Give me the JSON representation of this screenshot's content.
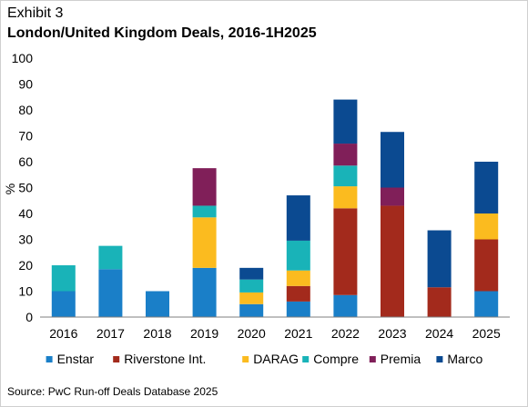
{
  "header": {
    "exhibit": "Exhibit 3",
    "title": "London/United Kingdom Deals, 2016-1H2025"
  },
  "footer": {
    "source": "Source: PwC Run-off Deals Database 2025"
  },
  "chart_data": {
    "type": "bar",
    "stacked": true,
    "title": "London/United Kingdom Deals, 2016-1H2025",
    "xlabel": "",
    "ylabel": "%",
    "ylim": [
      0,
      100
    ],
    "yticks": [
      0,
      10,
      20,
      30,
      40,
      50,
      60,
      70,
      80,
      90,
      100
    ],
    "grid": false,
    "legend": "bottom",
    "categories": [
      "2016",
      "2017",
      "2018",
      "2019",
      "2020",
      "2021",
      "2022",
      "2023",
      "2024",
      "2025"
    ],
    "series": [
      {
        "name": "Enstar",
        "color": "#1a7fc8",
        "values": [
          10,
          18.5,
          10,
          19,
          5,
          6,
          8.5,
          0,
          0,
          10
        ]
      },
      {
        "name": "Riverstone Int.",
        "color": "#a32a1c",
        "values": [
          0,
          0,
          0,
          0,
          0,
          6,
          33.5,
          43,
          11.5,
          20
        ]
      },
      {
        "name": "DARAG",
        "color": "#fbbb1f",
        "values": [
          0,
          0,
          0,
          19.5,
          4.5,
          6,
          8.5,
          0,
          0,
          10
        ]
      },
      {
        "name": "Compre",
        "color": "#19b3b8",
        "values": [
          10,
          9,
          0,
          4.5,
          5,
          11.5,
          8,
          0,
          0,
          0
        ]
      },
      {
        "name": "Premia",
        "color": "#801f59",
        "values": [
          0,
          0,
          0,
          14.5,
          0,
          0,
          8.5,
          7,
          0,
          0
        ]
      },
      {
        "name": "Marco",
        "color": "#0b4a91",
        "values": [
          0,
          0,
          0,
          0,
          4.5,
          17.5,
          17,
          21.5,
          22,
          20
        ]
      }
    ]
  }
}
